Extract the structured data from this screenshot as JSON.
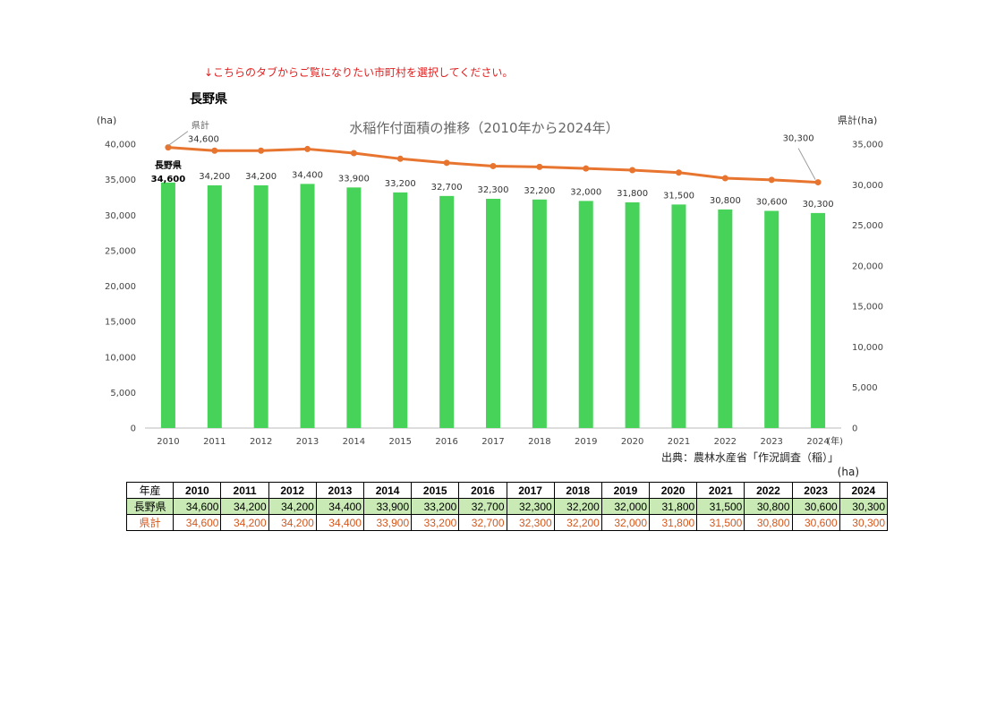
{
  "notice": "↓こちらのタブからご覧になりたい市町村を選択してください。",
  "pref_title": "長野県",
  "source": "出典：農林水産省「作況調査（稲）」",
  "unit_below": "(ha)",
  "colors": {
    "bar": "#47d35a",
    "line": "#e8752f",
    "notice": "#e02020",
    "table_green": "#c9eab4",
    "table_orange": "#d4571c"
  },
  "chart_data": {
    "type": "bar",
    "title": "水稲作付面積の推移（2010年から2024年）",
    "categories": [
      "2010",
      "2011",
      "2012",
      "2013",
      "2014",
      "2015",
      "2016",
      "2017",
      "2018",
      "2019",
      "2020",
      "2021",
      "2022",
      "2023",
      "2024"
    ],
    "x_unit": "(年)",
    "left_axis": {
      "unit": "(ha)",
      "min": 0,
      "max": 40000,
      "ticks": [
        "0",
        "5,000",
        "10,000",
        "15,000",
        "20,000",
        "25,000",
        "30,000",
        "35,000",
        "40,000"
      ]
    },
    "right_axis": {
      "unit": "県計(ha)",
      "min": 0,
      "max": 35000,
      "ticks": [
        "0",
        "5,000",
        "10,000",
        "15,000",
        "20,000",
        "25,000",
        "30,000",
        "35,000"
      ]
    },
    "series": [
      {
        "name": "長野県",
        "type": "bar",
        "axis": "left",
        "values": [
          34600,
          34200,
          34200,
          34400,
          33900,
          33200,
          32700,
          32300,
          32200,
          32000,
          31800,
          31500,
          30800,
          30600,
          30300
        ],
        "labels": [
          "34,600",
          "34,200",
          "34,200",
          "34,400",
          "33,900",
          "33,200",
          "32,700",
          "32,300",
          "32,200",
          "32,000",
          "31,800",
          "31,500",
          "30,800",
          "30,600",
          "30,300"
        ]
      },
      {
        "name": "県計",
        "type": "line",
        "axis": "right",
        "values": [
          34600,
          34200,
          34200,
          34400,
          33900,
          33200,
          32700,
          32300,
          32200,
          32000,
          31800,
          31500,
          30800,
          30600,
          30300
        ],
        "first_label": "34,600",
        "last_label": "30,300"
      }
    ]
  },
  "table": {
    "header_label": "年産",
    "years": [
      "2010",
      "2011",
      "2012",
      "2013",
      "2014",
      "2015",
      "2016",
      "2017",
      "2018",
      "2019",
      "2020",
      "2021",
      "2022",
      "2023",
      "2024"
    ],
    "rows": [
      {
        "label": "長野県",
        "values": [
          "34,600",
          "34,200",
          "34,200",
          "34,400",
          "33,900",
          "33,200",
          "32,700",
          "32,300",
          "32,200",
          "32,000",
          "31,800",
          "31,500",
          "30,800",
          "30,600",
          "30,300"
        ]
      },
      {
        "label": "県計",
        "values": [
          "34,600",
          "34,200",
          "34,200",
          "34,400",
          "33,900",
          "33,200",
          "32,700",
          "32,300",
          "32,200",
          "32,000",
          "31,800",
          "31,500",
          "30,800",
          "30,600",
          "30,300"
        ]
      }
    ]
  }
}
